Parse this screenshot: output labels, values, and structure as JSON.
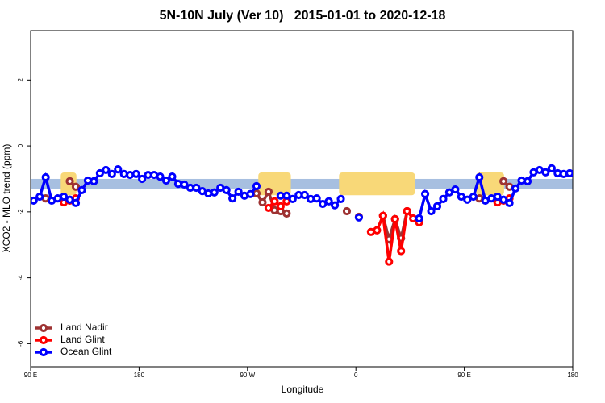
{
  "chart_data": {
    "type": "line",
    "title": "5N-10N July (Ver 10)   2015-01-01 to 2020-12-18",
    "xlabel": "Longitude",
    "ylabel": "XCO2 - MLO trend (ppm)",
    "xlim": [
      90,
      540
    ],
    "ylim": [
      -6.7,
      3.5
    ],
    "xticks": [
      {
        "value": 90,
        "label": "90 E"
      },
      180,
      {
        "value": 270,
        "label": "90 W"
      },
      {
        "value": 360,
        "label": "0"
      },
      {
        "value": 450,
        "label": "90 E"
      },
      {
        "value": 540,
        "label": "180"
      }
    ],
    "yticks": [
      -6,
      -4,
      -2,
      0,
      2
    ],
    "legend": "bottom-left",
    "band_ylim": [
      -1.3,
      -1.0
    ],
    "band_color": "#a7bfe0",
    "land_color": "#f8d878",
    "land_ranges": [
      [
        115,
        128
      ],
      [
        279,
        306
      ],
      [
        346,
        409
      ],
      [
        460,
        483
      ]
    ],
    "x": [
      92.5,
      97.5,
      102.5,
      107.5,
      112.5,
      117.5,
      122.5,
      127.5,
      132.5,
      137.5,
      142.5,
      147.5,
      152.5,
      157.5,
      162.5,
      167.5,
      172.5,
      177.5,
      182.5,
      187.5,
      192.5,
      197.5,
      202.5,
      207.5,
      212.5,
      217.5,
      222.5,
      227.5,
      232.5,
      237.5,
      242.5,
      247.5,
      252.5,
      257.5,
      262.5,
      267.5,
      272.5,
      277.5,
      282.5,
      287.5,
      292.5,
      297.5,
      302.5,
      307.5,
      312.5,
      317.5,
      322.5,
      327.5,
      332.5,
      337.5,
      342.5,
      347.5,
      352.5,
      357.5,
      362.5,
      367.5,
      372.5,
      377.5,
      382.5,
      387.5,
      392.5,
      397.5,
      402.5,
      407.5,
      412.5,
      417.5,
      422.5,
      427.5,
      432.5,
      437.5,
      442.5,
      447.5,
      452.5,
      457.5,
      462.5,
      467.5,
      472.5,
      477.5,
      482.5,
      487.5,
      492.5,
      497.5,
      502.5,
      507.5,
      512.5,
      517.5,
      522.5,
      527.5,
      532.5,
      537.5
    ],
    "series": [
      {
        "name": "Land Nadir",
        "color": "#9e3333",
        "values": [
          null,
          null,
          -1.59,
          null,
          null,
          null,
          -1.07,
          -1.24,
          null,
          null,
          null,
          null,
          null,
          null,
          null,
          null,
          null,
          null,
          null,
          null,
          null,
          null,
          null,
          null,
          null,
          null,
          null,
          null,
          null,
          null,
          null,
          null,
          null,
          null,
          null,
          null,
          null,
          -1.44,
          -1.71,
          -1.39,
          -1.95,
          -1.98,
          -2.05,
          null,
          null,
          null,
          null,
          null,
          null,
          null,
          null,
          null,
          -1.98,
          null,
          -2.15,
          null,
          null,
          null,
          -2.12,
          -2.83,
          -2.22,
          -2.8,
          -1.98,
          null,
          null,
          null,
          null,
          null,
          null,
          null,
          null,
          null,
          null,
          null,
          -1.59,
          null,
          null,
          null,
          -1.07,
          -1.24,
          null,
          null,
          null,
          null,
          null,
          null,
          null,
          null,
          null,
          null
        ]
      },
      {
        "name": "Land Glint",
        "color": "#ff0000",
        "values": [
          null,
          null,
          null,
          null,
          null,
          -1.71,
          -1.66,
          -1.59,
          null,
          null,
          null,
          null,
          null,
          null,
          null,
          null,
          null,
          null,
          null,
          null,
          null,
          null,
          null,
          null,
          null,
          null,
          null,
          null,
          null,
          null,
          null,
          null,
          null,
          null,
          null,
          null,
          null,
          null,
          null,
          -1.88,
          -1.68,
          -1.83,
          -1.68,
          null,
          null,
          null,
          null,
          null,
          null,
          null,
          null,
          null,
          null,
          null,
          null,
          null,
          -2.61,
          -2.56,
          -2.12,
          -3.51,
          -2.22,
          -3.19,
          -1.98,
          -2.2,
          -2.32,
          null,
          null,
          null,
          null,
          null,
          null,
          null,
          null,
          null,
          null,
          null,
          null,
          -1.71,
          -1.66,
          -1.59,
          null,
          null,
          null,
          null,
          null,
          null,
          null,
          null,
          null,
          null
        ]
      },
      {
        "name": "Ocean Glint",
        "color": "#0000ff",
        "values": [
          -1.66,
          -1.54,
          -0.95,
          -1.66,
          -1.59,
          -1.54,
          -1.63,
          -1.73,
          -1.34,
          -1.05,
          -1.07,
          -0.83,
          -0.73,
          -0.85,
          -0.71,
          -0.85,
          -0.88,
          -0.85,
          -1.0,
          -0.88,
          -0.88,
          -0.93,
          -1.05,
          -0.93,
          -1.15,
          -1.17,
          -1.27,
          -1.27,
          -1.37,
          -1.44,
          -1.41,
          -1.27,
          -1.34,
          -1.59,
          -1.39,
          -1.51,
          -1.46,
          -1.22,
          null,
          null,
          null,
          -1.51,
          -1.51,
          -1.61,
          -1.49,
          -1.49,
          -1.61,
          -1.59,
          -1.76,
          -1.68,
          -1.8,
          -1.61,
          null,
          null,
          -2.17,
          null,
          null,
          null,
          null,
          null,
          null,
          null,
          null,
          null,
          -2.2,
          -1.46,
          -1.98,
          -1.83,
          -1.61,
          -1.41,
          -1.32,
          -1.54,
          -1.63,
          -1.54,
          -0.95,
          -1.66,
          -1.59,
          -1.54,
          -1.63,
          -1.73,
          -1.29,
          -1.05,
          -1.07,
          -0.8,
          -0.73,
          -0.8,
          -0.68,
          -0.83,
          -0.85,
          -0.83
        ]
      }
    ]
  }
}
